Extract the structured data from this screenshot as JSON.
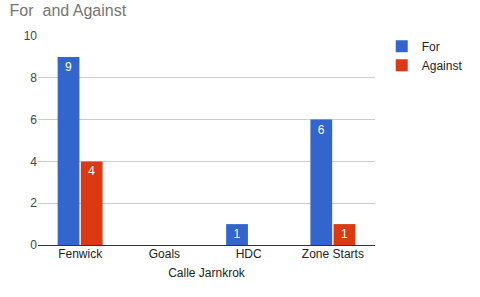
{
  "chart_data": {
    "type": "bar",
    "title": "For  and Against",
    "x_label": "Calle Jarnkrok",
    "categories": [
      "Fenwick",
      "Goals",
      "HDC",
      "Zone Starts"
    ],
    "series": [
      {
        "name": "For",
        "color": "#3366cc",
        "values": [
          9,
          0,
          1,
          6
        ]
      },
      {
        "name": "Against",
        "color": "#dc3912",
        "values": [
          4,
          0,
          0,
          1
        ]
      }
    ],
    "ylim": [
      0,
      10
    ],
    "yticks": [
      0,
      2,
      4,
      6,
      8,
      10
    ],
    "grid": true,
    "legend": "right",
    "data_labels": true
  }
}
